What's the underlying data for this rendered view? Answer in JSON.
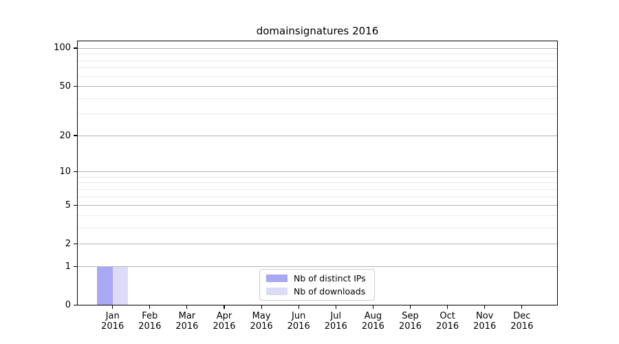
{
  "chart_data": {
    "type": "bar",
    "title": "domainsignatures 2016",
    "categories": [
      "Jan\n2016",
      "Feb\n2016",
      "Mar\n2016",
      "Apr\n2016",
      "May\n2016",
      "Jun\n2016",
      "Jul\n2016",
      "Aug\n2016",
      "Sep\n2016",
      "Oct\n2016",
      "Nov\n2016",
      "Dec\n2016"
    ],
    "series": [
      {
        "name": "Nb of distinct IPs",
        "color": "#a8a8f4",
        "values": [
          1,
          0,
          0,
          0,
          0,
          0,
          0,
          0,
          0,
          0,
          0,
          0
        ]
      },
      {
        "name": "Nb of downloads",
        "color": "#dcdcf8",
        "values": [
          1,
          0,
          0,
          0,
          0,
          0,
          0,
          0,
          0,
          0,
          0,
          0
        ]
      }
    ],
    "xlabel": "",
    "ylabel": "",
    "yscale": "log1p",
    "ylim": [
      0,
      113
    ],
    "yticks_major": [
      0,
      1,
      2,
      5,
      10,
      20,
      50,
      100
    ],
    "yticks_minor": [
      3,
      4,
      6,
      7,
      8,
      9,
      30,
      40,
      60,
      70,
      80,
      90
    ],
    "grid": "horizontal",
    "legend": {
      "position": "lower center",
      "entries": [
        "Nb of distinct IPs",
        "Nb of downloads"
      ]
    }
  },
  "style": {
    "background": "#ffffff",
    "text_color": "#000000",
    "spine_color": "#000000",
    "major_grid_color": "#b3b3b3",
    "minor_grid_color": "#e9e9e9",
    "legend_border_color": "#cccccc"
  }
}
